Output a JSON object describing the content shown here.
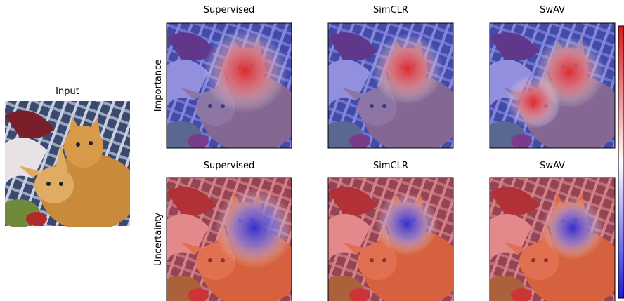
{
  "input": {
    "title": "Input"
  },
  "rows": [
    {
      "label": "Importance",
      "panels": [
        {
          "title": "Supervised"
        },
        {
          "title": "SimCLR"
        },
        {
          "title": "SwAV"
        }
      ]
    },
    {
      "label": "Uncertainty",
      "panels": [
        {
          "title": "Supervised"
        },
        {
          "title": "SimCLR"
        },
        {
          "title": "SwAV"
        }
      ]
    }
  ]
}
